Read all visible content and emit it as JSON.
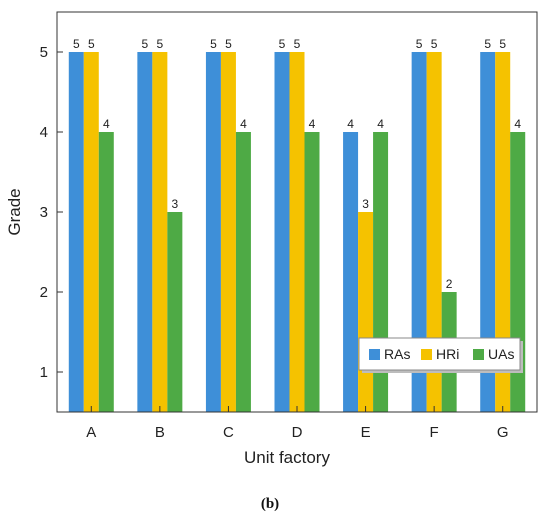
{
  "chart_data": {
    "type": "bar",
    "categories": [
      "A",
      "B",
      "C",
      "D",
      "E",
      "F",
      "G"
    ],
    "series": [
      {
        "name": "RAs",
        "values": [
          5,
          5,
          5,
          5,
          4,
          5,
          5
        ],
        "color": "#3E8FD8"
      },
      {
        "name": "HRi",
        "values": [
          5,
          5,
          5,
          5,
          3,
          5,
          5
        ],
        "color": "#F5C200"
      },
      {
        "name": "UAs",
        "values": [
          4,
          3,
          4,
          4,
          4,
          2,
          4
        ],
        "color": "#4EAA45"
      }
    ],
    "xlabel": "Unit factory",
    "ylabel": "Grade",
    "ylim": [
      0.5,
      5.5
    ],
    "yticks": [
      1,
      2,
      3,
      4,
      5
    ],
    "grid": false,
    "legend_position": "bottom-right",
    "data_labels": true
  },
  "caption": "(b)"
}
